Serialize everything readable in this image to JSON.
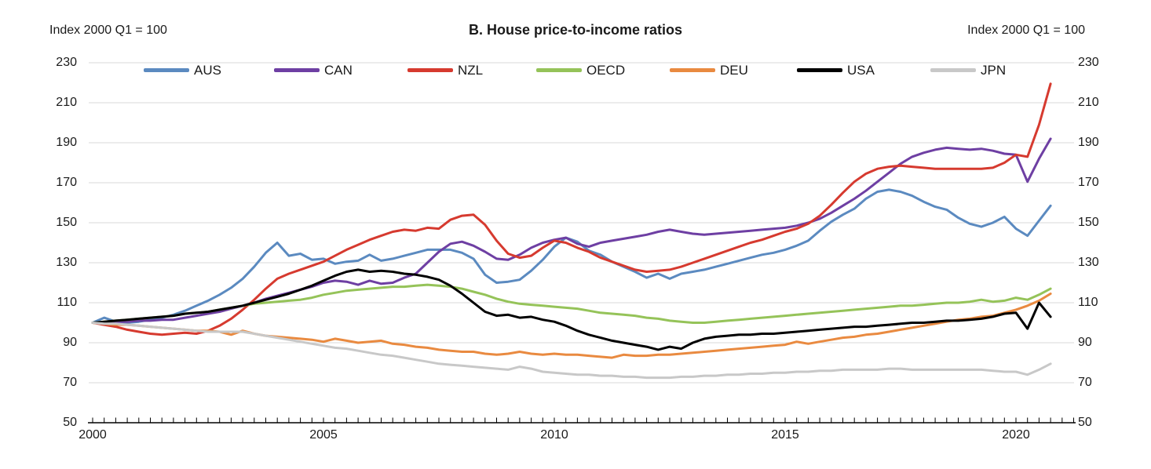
{
  "header": {
    "left_unit_label": "Index 2000 Q1 = 100",
    "right_unit_label": "Index 2000 Q1 = 100",
    "title": "B. House price-to-income ratios"
  },
  "chart_data": {
    "type": "line",
    "title": "B. House price-to-income ratios",
    "unit_label": "Index 2000 Q1 = 100",
    "x_start": 2000.0,
    "x_step_years": 0.25,
    "x_data_end": 2020.75,
    "x_axis_end": 2021.25,
    "xticks": [
      2000,
      2005,
      2010,
      2015,
      2020
    ],
    "yticks": [
      230,
      210,
      190,
      170,
      150,
      130,
      110,
      90,
      70,
      50
    ],
    "ylim": [
      50,
      230
    ],
    "grid": "horizontal",
    "legend_position": "top",
    "colors": {
      "gridline": "#d8d8d8",
      "axis": "#000000"
    },
    "series": [
      {
        "name": "AUS",
        "color": "#5b8ac0",
        "values": [
          100,
          102.5,
          100.5,
          100,
          100.5,
          101.5,
          102.5,
          104,
          106,
          108.5,
          111,
          114,
          117.5,
          122,
          128,
          135,
          140,
          133.5,
          134.5,
          131.5,
          132,
          129.5,
          130.5,
          131,
          134,
          131,
          132,
          133.5,
          135,
          136.5,
          136.5,
          136.5,
          135,
          132,
          124,
          120,
          120.5,
          121.5,
          126,
          131.5,
          138,
          142.5,
          140.5,
          136,
          134,
          130.5,
          128,
          125.5,
          122.5,
          124.5,
          122,
          124.5,
          125.5,
          126.5,
          128,
          129.5,
          131,
          132.5,
          134,
          135,
          136.5,
          138.5,
          141,
          146,
          150.5,
          154,
          157,
          162,
          165.5,
          166.5,
          165.5,
          163.5,
          160.5,
          158,
          156.5,
          152.5,
          149.5,
          148,
          150,
          153,
          147,
          143.5,
          151,
          158.5
        ]
      },
      {
        "name": "CAN",
        "color": "#6e3fa3",
        "values": [
          100,
          100,
          100.5,
          100.5,
          101,
          101,
          101.5,
          101.5,
          102.5,
          103.5,
          104.5,
          105.5,
          107,
          108.5,
          110,
          112,
          113.5,
          115,
          116.5,
          118,
          120,
          121,
          120.5,
          119,
          121,
          119.5,
          120,
          122.5,
          124.5,
          130,
          135.5,
          139.5,
          140.5,
          138.5,
          135.5,
          132,
          131.5,
          134,
          137.5,
          140,
          141.5,
          142.5,
          139.5,
          138,
          140,
          141,
          142,
          143,
          144,
          145.5,
          146.5,
          145.5,
          144.5,
          144,
          144.5,
          145,
          145.5,
          146,
          146.5,
          147,
          147.5,
          148.5,
          150,
          152,
          155,
          158.5,
          162,
          166,
          170.5,
          175,
          179.5,
          183,
          185,
          186.5,
          187.5,
          187,
          186.5,
          187,
          186,
          184.5,
          184,
          170.5,
          182,
          192
        ]
      },
      {
        "name": "NZL",
        "color": "#d63a2f",
        "values": [
          100,
          99,
          98,
          96.5,
          95.5,
          94.5,
          94,
          94.5,
          95,
          94.5,
          96,
          98.5,
          102,
          106.5,
          111.5,
          117,
          122,
          124.5,
          126.5,
          128.5,
          130.5,
          133.5,
          136.5,
          139,
          141.5,
          143.5,
          145.5,
          146.5,
          146,
          147.5,
          147,
          151.5,
          153.5,
          154,
          149,
          141,
          134.5,
          132.5,
          133.5,
          137.5,
          141,
          140,
          137.5,
          135.5,
          132.5,
          130.5,
          128.5,
          126.5,
          125.5,
          126,
          126.5,
          128,
          130,
          132,
          134,
          136,
          138,
          140,
          141.5,
          143.5,
          145.5,
          147,
          149.5,
          153.5,
          159,
          165,
          170.5,
          174.5,
          177,
          178,
          178.5,
          178,
          177.5,
          177,
          177,
          177,
          177,
          177,
          177.5,
          180,
          184,
          183,
          199,
          219.5
        ]
      },
      {
        "name": "OECD",
        "color": "#95c359",
        "values": [
          100,
          100.5,
          101,
          101.5,
          102,
          102.5,
          103,
          103.5,
          104.5,
          105,
          105.5,
          106.5,
          107.5,
          108.5,
          109.5,
          110,
          110.5,
          111,
          111.5,
          112.5,
          114,
          115,
          116,
          116.5,
          117,
          117.5,
          118,
          118,
          118.5,
          119,
          118.5,
          118,
          117,
          115.5,
          114,
          112,
          110.5,
          109.5,
          109,
          108.5,
          108,
          107.5,
          107,
          106,
          105,
          104.5,
          104,
          103.5,
          102.5,
          102,
          101,
          100.5,
          100,
          100,
          100.5,
          101,
          101.5,
          102,
          102.5,
          103,
          103.5,
          104,
          104.5,
          105,
          105.5,
          106,
          106.5,
          107,
          107.5,
          108,
          108.5,
          108.5,
          109,
          109.5,
          110,
          110,
          110.5,
          111.5,
          110.5,
          111,
          112.5,
          111.5,
          114,
          117
        ]
      },
      {
        "name": "DEU",
        "color": "#e98a40",
        "values": [
          100,
          99.5,
          99,
          99,
          98.5,
          98,
          97.5,
          97,
          96.5,
          96,
          96,
          95.5,
          94,
          96,
          94.5,
          93.5,
          93,
          92.5,
          92,
          91.5,
          90.5,
          92,
          91,
          90,
          90.5,
          91,
          89.5,
          89,
          88,
          87.5,
          86.5,
          86,
          85.5,
          85.5,
          84.5,
          84,
          84.5,
          85.5,
          84.5,
          84,
          84.5,
          84,
          84,
          83.5,
          83,
          82.5,
          84,
          83.5,
          83.5,
          84,
          84,
          84.5,
          85,
          85.5,
          86,
          86.5,
          87,
          87.5,
          88,
          88.5,
          89,
          90.5,
          89.5,
          90.5,
          91.5,
          92.5,
          93,
          94,
          94.5,
          95.5,
          96.5,
          97.5,
          98.5,
          99.5,
          100.5,
          101.5,
          102,
          103,
          103.5,
          105,
          106.5,
          108.5,
          111,
          114.5
        ]
      },
      {
        "name": "USA",
        "color": "#000000",
        "values": [
          100,
          100.5,
          101,
          101.5,
          102,
          102.5,
          103,
          103.5,
          104.5,
          105,
          105.5,
          106.5,
          107.5,
          108.5,
          110,
          111.5,
          113,
          114.5,
          116.5,
          118.5,
          121,
          123.5,
          125.5,
          126.5,
          125.5,
          126,
          125.5,
          124.5,
          124,
          123,
          121.5,
          118.5,
          114.5,
          110,
          105.5,
          103.5,
          104,
          102.5,
          103,
          101.5,
          100.5,
          98.5,
          96,
          94,
          92.5,
          91,
          90,
          89,
          88,
          86.5,
          88,
          87,
          90,
          92,
          93,
          93.5,
          94,
          94,
          94.5,
          94.5,
          95,
          95.5,
          96,
          96.5,
          97,
          97.5,
          98,
          98,
          98.5,
          99,
          99.5,
          100,
          100,
          100.5,
          101,
          101,
          101.5,
          102,
          103,
          104.5,
          105,
          97,
          110,
          103
        ]
      },
      {
        "name": "JPN",
        "color": "#c8c8c8",
        "values": [
          100,
          99.5,
          99.5,
          99,
          98.5,
          98,
          97.5,
          97,
          96.5,
          96,
          95.5,
          95.5,
          95.5,
          95.5,
          94.5,
          93.5,
          92.5,
          91.5,
          90.5,
          89.5,
          88.5,
          87.5,
          87,
          86,
          85,
          84,
          83.5,
          82.5,
          81.5,
          80.5,
          79.5,
          79,
          78.5,
          78,
          77.5,
          77,
          76.5,
          78,
          77,
          75.5,
          75,
          74.5,
          74,
          74,
          73.5,
          73.5,
          73,
          73,
          72.5,
          72.5,
          72.5,
          73,
          73,
          73.5,
          73.5,
          74,
          74,
          74.5,
          74.5,
          75,
          75,
          75.5,
          75.5,
          76,
          76,
          76.5,
          76.5,
          76.5,
          76.5,
          77,
          77,
          76.5,
          76.5,
          76.5,
          76.5,
          76.5,
          76.5,
          76.5,
          76,
          75.5,
          75.5,
          74,
          76.5,
          79.5
        ]
      }
    ]
  }
}
